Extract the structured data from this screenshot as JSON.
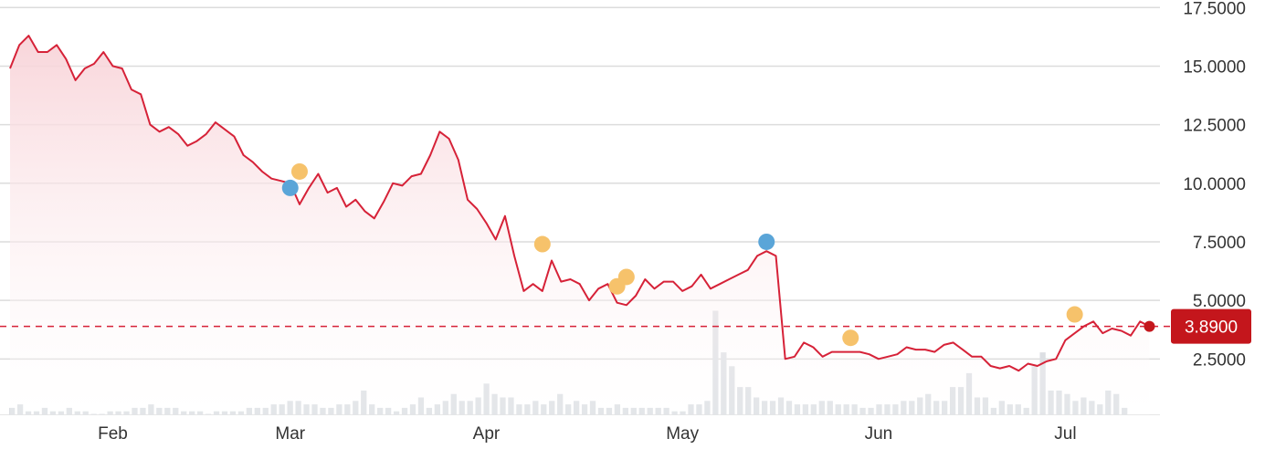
{
  "colors": {
    "line": "#d62238",
    "area_top": "#f8d3d8",
    "grid": "#dcdcdc",
    "volume": "#dcdfe3",
    "marker_orange": "#f6c26b",
    "marker_blue": "#5aa5d8",
    "price_badge": "#c4161c"
  },
  "chart_data": {
    "type": "line",
    "title": "",
    "xlabel": "",
    "ylabel": "",
    "ylim": [
      0,
      17.5
    ],
    "y_ticks": [
      "2.5000",
      "5.0000",
      "7.5000",
      "10.0000",
      "12.5000",
      "15.0000",
      "17.5000"
    ],
    "x_ticks": [
      "Feb",
      "Mar",
      "Apr",
      "May",
      "Jun",
      "Jul"
    ],
    "x_range": [
      1,
      121
    ],
    "x_tick_positions": [
      12,
      31,
      52,
      73,
      94,
      114
    ],
    "grid": true,
    "current_price": 3.89,
    "current_price_label": "3.8900",
    "series": [
      {
        "values": [
          14.9,
          15.9,
          16.3,
          15.6,
          15.6,
          15.9,
          15.3,
          14.4,
          14.9,
          15.1,
          15.6,
          15.0,
          14.9,
          14.0,
          13.8,
          12.5,
          12.2,
          12.4,
          12.1,
          11.6,
          11.8,
          12.1,
          12.6,
          12.3,
          12.0,
          11.2,
          10.9,
          10.5,
          10.2,
          10.1,
          10.0,
          9.1,
          9.8,
          10.4,
          9.6,
          9.8,
          9.0,
          9.3,
          8.8,
          8.5,
          9.2,
          10.0,
          9.9,
          10.3,
          10.4,
          11.2,
          12.2,
          11.9,
          11.0,
          9.3,
          8.9,
          8.3,
          7.6,
          8.6,
          6.9,
          5.4,
          5.7,
          5.4,
          6.7,
          5.8,
          5.9,
          5.7,
          5.0,
          5.5,
          5.7,
          4.9,
          4.8,
          5.2,
          5.9,
          5.5,
          5.8,
          5.8,
          5.4,
          5.6,
          6.1,
          5.5,
          5.7,
          5.9,
          6.1,
          6.3,
          6.9,
          7.1,
          6.9,
          2.5,
          2.6,
          3.2,
          3.0,
          2.6,
          2.8,
          2.8,
          2.8,
          2.8,
          2.7,
          2.5,
          2.6,
          2.7,
          3.0,
          2.9,
          2.9,
          2.8,
          3.1,
          3.2,
          2.9,
          2.6,
          2.6,
          2.2,
          2.1,
          2.2,
          2.0,
          2.3,
          2.2,
          2.4,
          2.5,
          3.3,
          3.6,
          3.9,
          4.1,
          3.6,
          3.8,
          3.7,
          3.5,
          4.1,
          3.89
        ]
      }
    ],
    "volume": [
      2,
      3,
      1,
      1,
      2,
      1,
      1,
      2,
      1,
      1,
      0,
      0,
      1,
      1,
      1,
      2,
      2,
      3,
      2,
      2,
      2,
      1,
      1,
      1,
      0,
      1,
      1,
      1,
      1,
      2,
      2,
      2,
      3,
      3,
      4,
      4,
      3,
      3,
      2,
      2,
      3,
      3,
      4,
      7,
      3,
      2,
      2,
      1,
      2,
      3,
      5,
      2,
      3,
      4,
      6,
      4,
      4,
      5,
      9,
      6,
      5,
      5,
      3,
      3,
      4,
      3,
      4,
      6,
      3,
      4,
      3,
      4,
      2,
      2,
      3,
      2,
      2,
      2,
      2,
      2,
      2,
      1,
      1,
      3,
      3,
      4,
      30,
      18,
      14,
      8,
      8,
      5,
      4,
      4,
      5,
      4,
      3,
      3,
      3,
      4,
      4,
      3,
      3,
      3,
      2,
      2,
      3,
      3,
      3,
      4,
      4,
      5,
      6,
      4,
      4,
      8,
      8,
      12,
      5,
      5,
      2,
      4,
      3,
      3,
      2,
      14,
      18,
      7,
      7,
      6,
      4,
      5,
      4,
      3,
      7,
      6,
      2
    ],
    "markers": [
      {
        "x": 32,
        "y": 10.5,
        "color": "orange"
      },
      {
        "x": 31,
        "y": 9.8,
        "color": "blue"
      },
      {
        "x": 58,
        "y": 7.4,
        "color": "orange"
      },
      {
        "x": 66,
        "y": 5.6,
        "color": "orange"
      },
      {
        "x": 67,
        "y": 6.0,
        "color": "orange"
      },
      {
        "x": 82,
        "y": 7.5,
        "color": "blue"
      },
      {
        "x": 91,
        "y": 3.4,
        "color": "orange"
      },
      {
        "x": 115,
        "y": 4.4,
        "color": "orange"
      }
    ]
  }
}
